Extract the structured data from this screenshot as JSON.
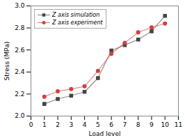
{
  "chart_data": {
    "type": "line",
    "x": [
      1,
      2,
      3,
      4,
      5,
      6,
      7,
      8,
      9,
      10
    ],
    "series": [
      {
        "name": "Z axis simulation",
        "color": "#444444",
        "marker": "square",
        "values": [
          2.11,
          2.155,
          2.185,
          2.22,
          2.345,
          2.595,
          2.645,
          2.695,
          2.77,
          2.91
        ]
      },
      {
        "name": "Z axis experiment",
        "color": "#d44040",
        "marker": "circle",
        "values": [
          2.175,
          2.225,
          2.245,
          2.27,
          2.41,
          2.565,
          2.665,
          2.76,
          2.805,
          2.84
        ]
      }
    ],
    "xlabel": "Load level",
    "ylabel": "Stress (MPa)",
    "xlim": [
      0,
      11
    ],
    "ylim": [
      2.0,
      3.0
    ],
    "xticks": [
      0,
      1,
      2,
      3,
      4,
      5,
      6,
      7,
      8,
      9,
      10,
      11
    ],
    "yticks": [
      {
        "value": 2.0,
        "label": "2.0"
      },
      2.2,
      2.4,
      2.6,
      2.8,
      {
        "value": 3.0,
        "label": "3.0"
      }
    ],
    "legend": "upper left",
    "grid": false
  }
}
